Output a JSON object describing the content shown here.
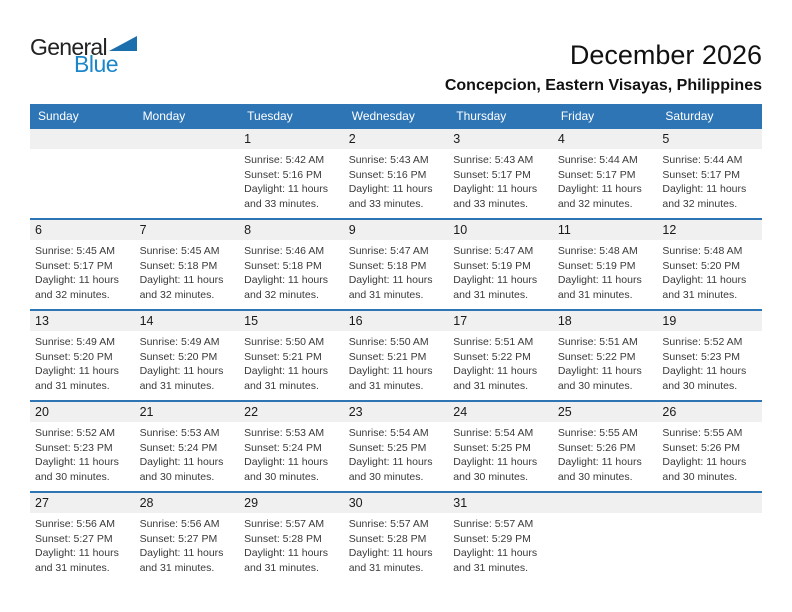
{
  "logo": {
    "part1": "General",
    "part2": "Blue"
  },
  "header": {
    "title": "December 2026",
    "subtitle": "Concepcion, Eastern Visayas, Philippines"
  },
  "colors": {
    "header_blue": "#2E75B6",
    "divider_blue": "#2E75B6",
    "band_gray": "#F0F0F0",
    "logo_blue": "#1B87C9",
    "logo_triangle": "#1C6FAD"
  },
  "calendar": {
    "weekdays": [
      "Sunday",
      "Monday",
      "Tuesday",
      "Wednesday",
      "Thursday",
      "Friday",
      "Saturday"
    ],
    "labels": {
      "sunrise": "Sunrise:",
      "sunset": "Sunset:",
      "daylight": "Daylight:"
    },
    "weeks": [
      [
        null,
        null,
        {
          "day": "1",
          "sunrise": "5:42 AM",
          "sunset": "5:16 PM",
          "daylight": "11 hours and 33 minutes."
        },
        {
          "day": "2",
          "sunrise": "5:43 AM",
          "sunset": "5:16 PM",
          "daylight": "11 hours and 33 minutes."
        },
        {
          "day": "3",
          "sunrise": "5:43 AM",
          "sunset": "5:17 PM",
          "daylight": "11 hours and 33 minutes."
        },
        {
          "day": "4",
          "sunrise": "5:44 AM",
          "sunset": "5:17 PM",
          "daylight": "11 hours and 32 minutes."
        },
        {
          "day": "5",
          "sunrise": "5:44 AM",
          "sunset": "5:17 PM",
          "daylight": "11 hours and 32 minutes."
        }
      ],
      [
        {
          "day": "6",
          "sunrise": "5:45 AM",
          "sunset": "5:17 PM",
          "daylight": "11 hours and 32 minutes."
        },
        {
          "day": "7",
          "sunrise": "5:45 AM",
          "sunset": "5:18 PM",
          "daylight": "11 hours and 32 minutes."
        },
        {
          "day": "8",
          "sunrise": "5:46 AM",
          "sunset": "5:18 PM",
          "daylight": "11 hours and 32 minutes."
        },
        {
          "day": "9",
          "sunrise": "5:47 AM",
          "sunset": "5:18 PM",
          "daylight": "11 hours and 31 minutes."
        },
        {
          "day": "10",
          "sunrise": "5:47 AM",
          "sunset": "5:19 PM",
          "daylight": "11 hours and 31 minutes."
        },
        {
          "day": "11",
          "sunrise": "5:48 AM",
          "sunset": "5:19 PM",
          "daylight": "11 hours and 31 minutes."
        },
        {
          "day": "12",
          "sunrise": "5:48 AM",
          "sunset": "5:20 PM",
          "daylight": "11 hours and 31 minutes."
        }
      ],
      [
        {
          "day": "13",
          "sunrise": "5:49 AM",
          "sunset": "5:20 PM",
          "daylight": "11 hours and 31 minutes."
        },
        {
          "day": "14",
          "sunrise": "5:49 AM",
          "sunset": "5:20 PM",
          "daylight": "11 hours and 31 minutes."
        },
        {
          "day": "15",
          "sunrise": "5:50 AM",
          "sunset": "5:21 PM",
          "daylight": "11 hours and 31 minutes."
        },
        {
          "day": "16",
          "sunrise": "5:50 AM",
          "sunset": "5:21 PM",
          "daylight": "11 hours and 31 minutes."
        },
        {
          "day": "17",
          "sunrise": "5:51 AM",
          "sunset": "5:22 PM",
          "daylight": "11 hours and 31 minutes."
        },
        {
          "day": "18",
          "sunrise": "5:51 AM",
          "sunset": "5:22 PM",
          "daylight": "11 hours and 30 minutes."
        },
        {
          "day": "19",
          "sunrise": "5:52 AM",
          "sunset": "5:23 PM",
          "daylight": "11 hours and 30 minutes."
        }
      ],
      [
        {
          "day": "20",
          "sunrise": "5:52 AM",
          "sunset": "5:23 PM",
          "daylight": "11 hours and 30 minutes."
        },
        {
          "day": "21",
          "sunrise": "5:53 AM",
          "sunset": "5:24 PM",
          "daylight": "11 hours and 30 minutes."
        },
        {
          "day": "22",
          "sunrise": "5:53 AM",
          "sunset": "5:24 PM",
          "daylight": "11 hours and 30 minutes."
        },
        {
          "day": "23",
          "sunrise": "5:54 AM",
          "sunset": "5:25 PM",
          "daylight": "11 hours and 30 minutes."
        },
        {
          "day": "24",
          "sunrise": "5:54 AM",
          "sunset": "5:25 PM",
          "daylight": "11 hours and 30 minutes."
        },
        {
          "day": "25",
          "sunrise": "5:55 AM",
          "sunset": "5:26 PM",
          "daylight": "11 hours and 30 minutes."
        },
        {
          "day": "26",
          "sunrise": "5:55 AM",
          "sunset": "5:26 PM",
          "daylight": "11 hours and 30 minutes."
        }
      ],
      [
        {
          "day": "27",
          "sunrise": "5:56 AM",
          "sunset": "5:27 PM",
          "daylight": "11 hours and 31 minutes."
        },
        {
          "day": "28",
          "sunrise": "5:56 AM",
          "sunset": "5:27 PM",
          "daylight": "11 hours and 31 minutes."
        },
        {
          "day": "29",
          "sunrise": "5:57 AM",
          "sunset": "5:28 PM",
          "daylight": "11 hours and 31 minutes."
        },
        {
          "day": "30",
          "sunrise": "5:57 AM",
          "sunset": "5:28 PM",
          "daylight": "11 hours and 31 minutes."
        },
        {
          "day": "31",
          "sunrise": "5:57 AM",
          "sunset": "5:29 PM",
          "daylight": "11 hours and 31 minutes."
        },
        null,
        null
      ]
    ]
  }
}
